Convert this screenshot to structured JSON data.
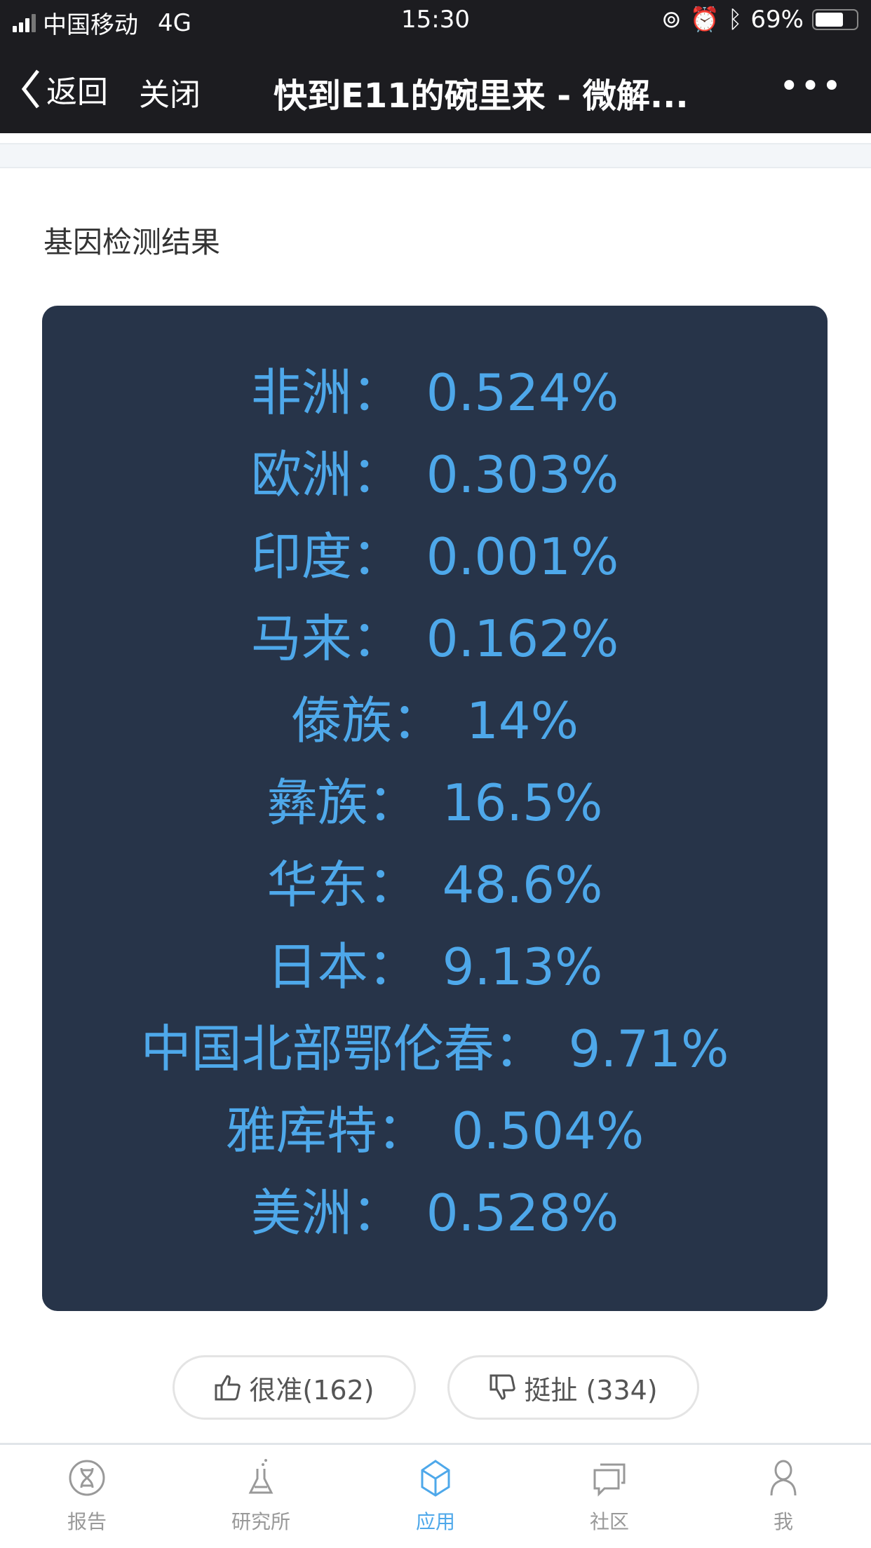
{
  "status_bar": {
    "carrier": "中国移动",
    "network": "4G",
    "time": "15:30",
    "battery": "69%",
    "battery_level": 0.69
  },
  "nav": {
    "back_label": "返回",
    "close_label": "关闭",
    "title": "快到E11的碗里来 - 微解...",
    "more_label": "•••"
  },
  "section_title": "基因检测结果",
  "results": [
    {
      "region": "非洲：",
      "value": "0.524%"
    },
    {
      "region": "欧洲：",
      "value": "0.303%"
    },
    {
      "region": "印度：",
      "value": "0.001%"
    },
    {
      "region": "马来：",
      "value": "0.162%"
    },
    {
      "region": "傣族：",
      "value": "14%"
    },
    {
      "region": "彝族：",
      "value": "16.5%"
    },
    {
      "region": "华东：",
      "value": "48.6%"
    },
    {
      "region": "日本：",
      "value": "9.13%"
    },
    {
      "region": "中国北部鄂伦春：",
      "value": "9.71%"
    },
    {
      "region": "雅库特：",
      "value": "0.504%"
    },
    {
      "region": "美洲：",
      "value": "0.528%"
    }
  ],
  "feedback": {
    "like_label": "很准(162)",
    "dislike_label": "挺扯 (334)"
  },
  "tabs": [
    {
      "label": "报告",
      "icon": "dna-icon"
    },
    {
      "label": "研究所",
      "icon": "flask-icon"
    },
    {
      "label": "应用",
      "icon": "cube-icon",
      "active": true
    },
    {
      "label": "社区",
      "icon": "chat-icon"
    },
    {
      "label": "我",
      "icon": "user-icon"
    }
  ],
  "colors": {
    "card": "#273449",
    "accent": "#4ea8ea",
    "nav": "#1c1c20"
  }
}
